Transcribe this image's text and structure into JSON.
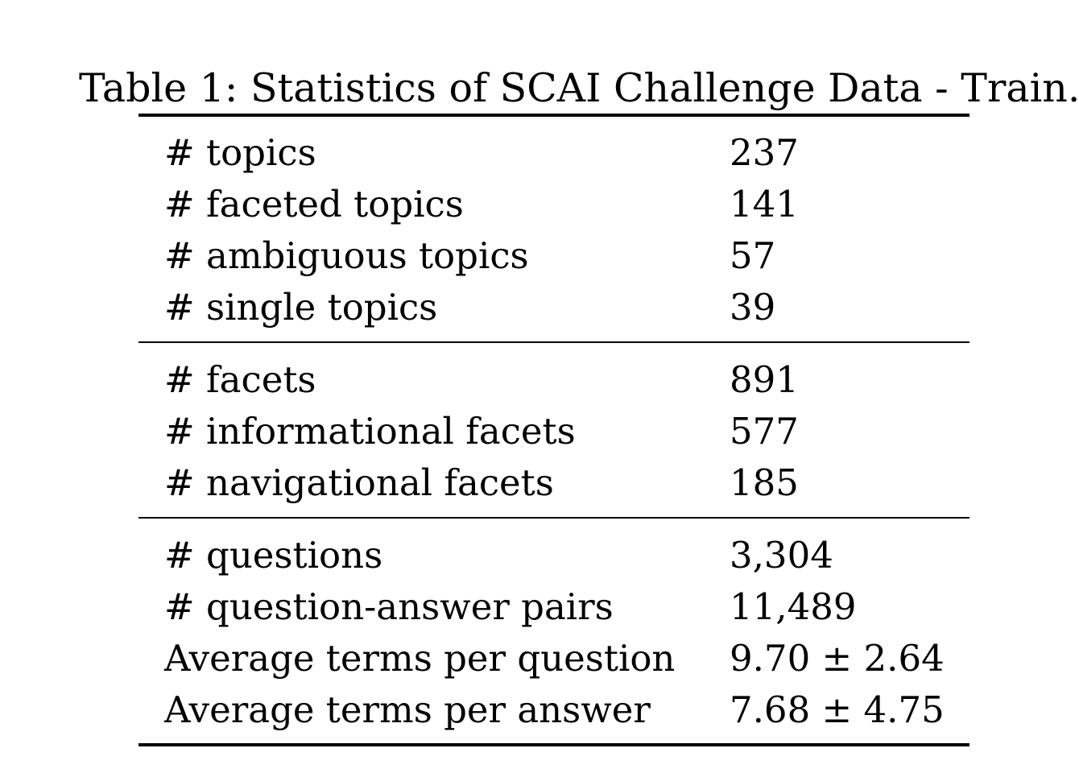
{
  "table": {
    "caption": "Table 1: Statistics of SCAI Challenge Data - Train.",
    "groups": [
      {
        "rows": [
          {
            "label": "# topics",
            "value": "237"
          },
          {
            "label": "# faceted topics",
            "value": "141"
          },
          {
            "label": "# ambiguous topics",
            "value": "57"
          },
          {
            "label": "# single topics",
            "value": "39"
          }
        ]
      },
      {
        "rows": [
          {
            "label": "# facets",
            "value": "891"
          },
          {
            "label": "# informational facets",
            "value": "577"
          },
          {
            "label": "# navigational facets",
            "value": "185"
          }
        ]
      },
      {
        "rows": [
          {
            "label": "# questions",
            "value": "3,304"
          },
          {
            "label": "# question-answer pairs",
            "value": "11,489"
          },
          {
            "label": "Average terms per question",
            "value": "9.70 ± 2.64"
          },
          {
            "label": "Average terms per answer",
            "value": "7.68 ± 4.75"
          }
        ]
      }
    ]
  }
}
